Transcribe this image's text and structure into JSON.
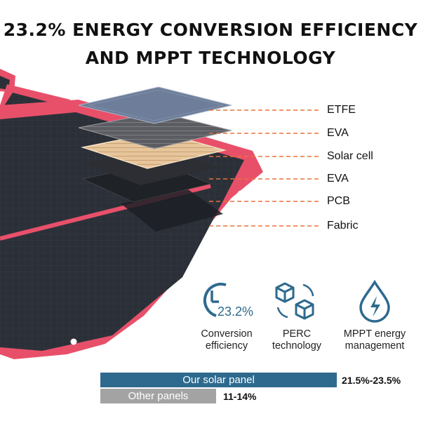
{
  "header": {
    "line1": "23.2% ENERGY CONVERSION EFFICIENCY",
    "line2": "AND MPPT TECHNOLOGY"
  },
  "layers": [
    "ETFE",
    "EVA",
    "Solar cell",
    "EVA",
    "PCB",
    "Fabric"
  ],
  "features": [
    {
      "icon": "efficiency-clock-icon",
      "value": "23.2%",
      "label_line1": "Conversion",
      "label_line2": "efficiency"
    },
    {
      "icon": "perc-cubes-icon",
      "label_line1": "PERC",
      "label_line2": "technology"
    },
    {
      "icon": "mppt-droplet-icon",
      "label_line1": "MPPT energy",
      "label_line2": "management"
    }
  ],
  "comparison": {
    "ours": {
      "label": "Our solar panel",
      "value": "21.5%-23.5%"
    },
    "other": {
      "label": "Other panels",
      "value": "11-14%"
    }
  },
  "colors": {
    "accent_blue": "#2e6a8e",
    "panel_frame": "#e8506a",
    "dashed_line": "#e8733a",
    "bar_gray": "#a3a3a3"
  }
}
